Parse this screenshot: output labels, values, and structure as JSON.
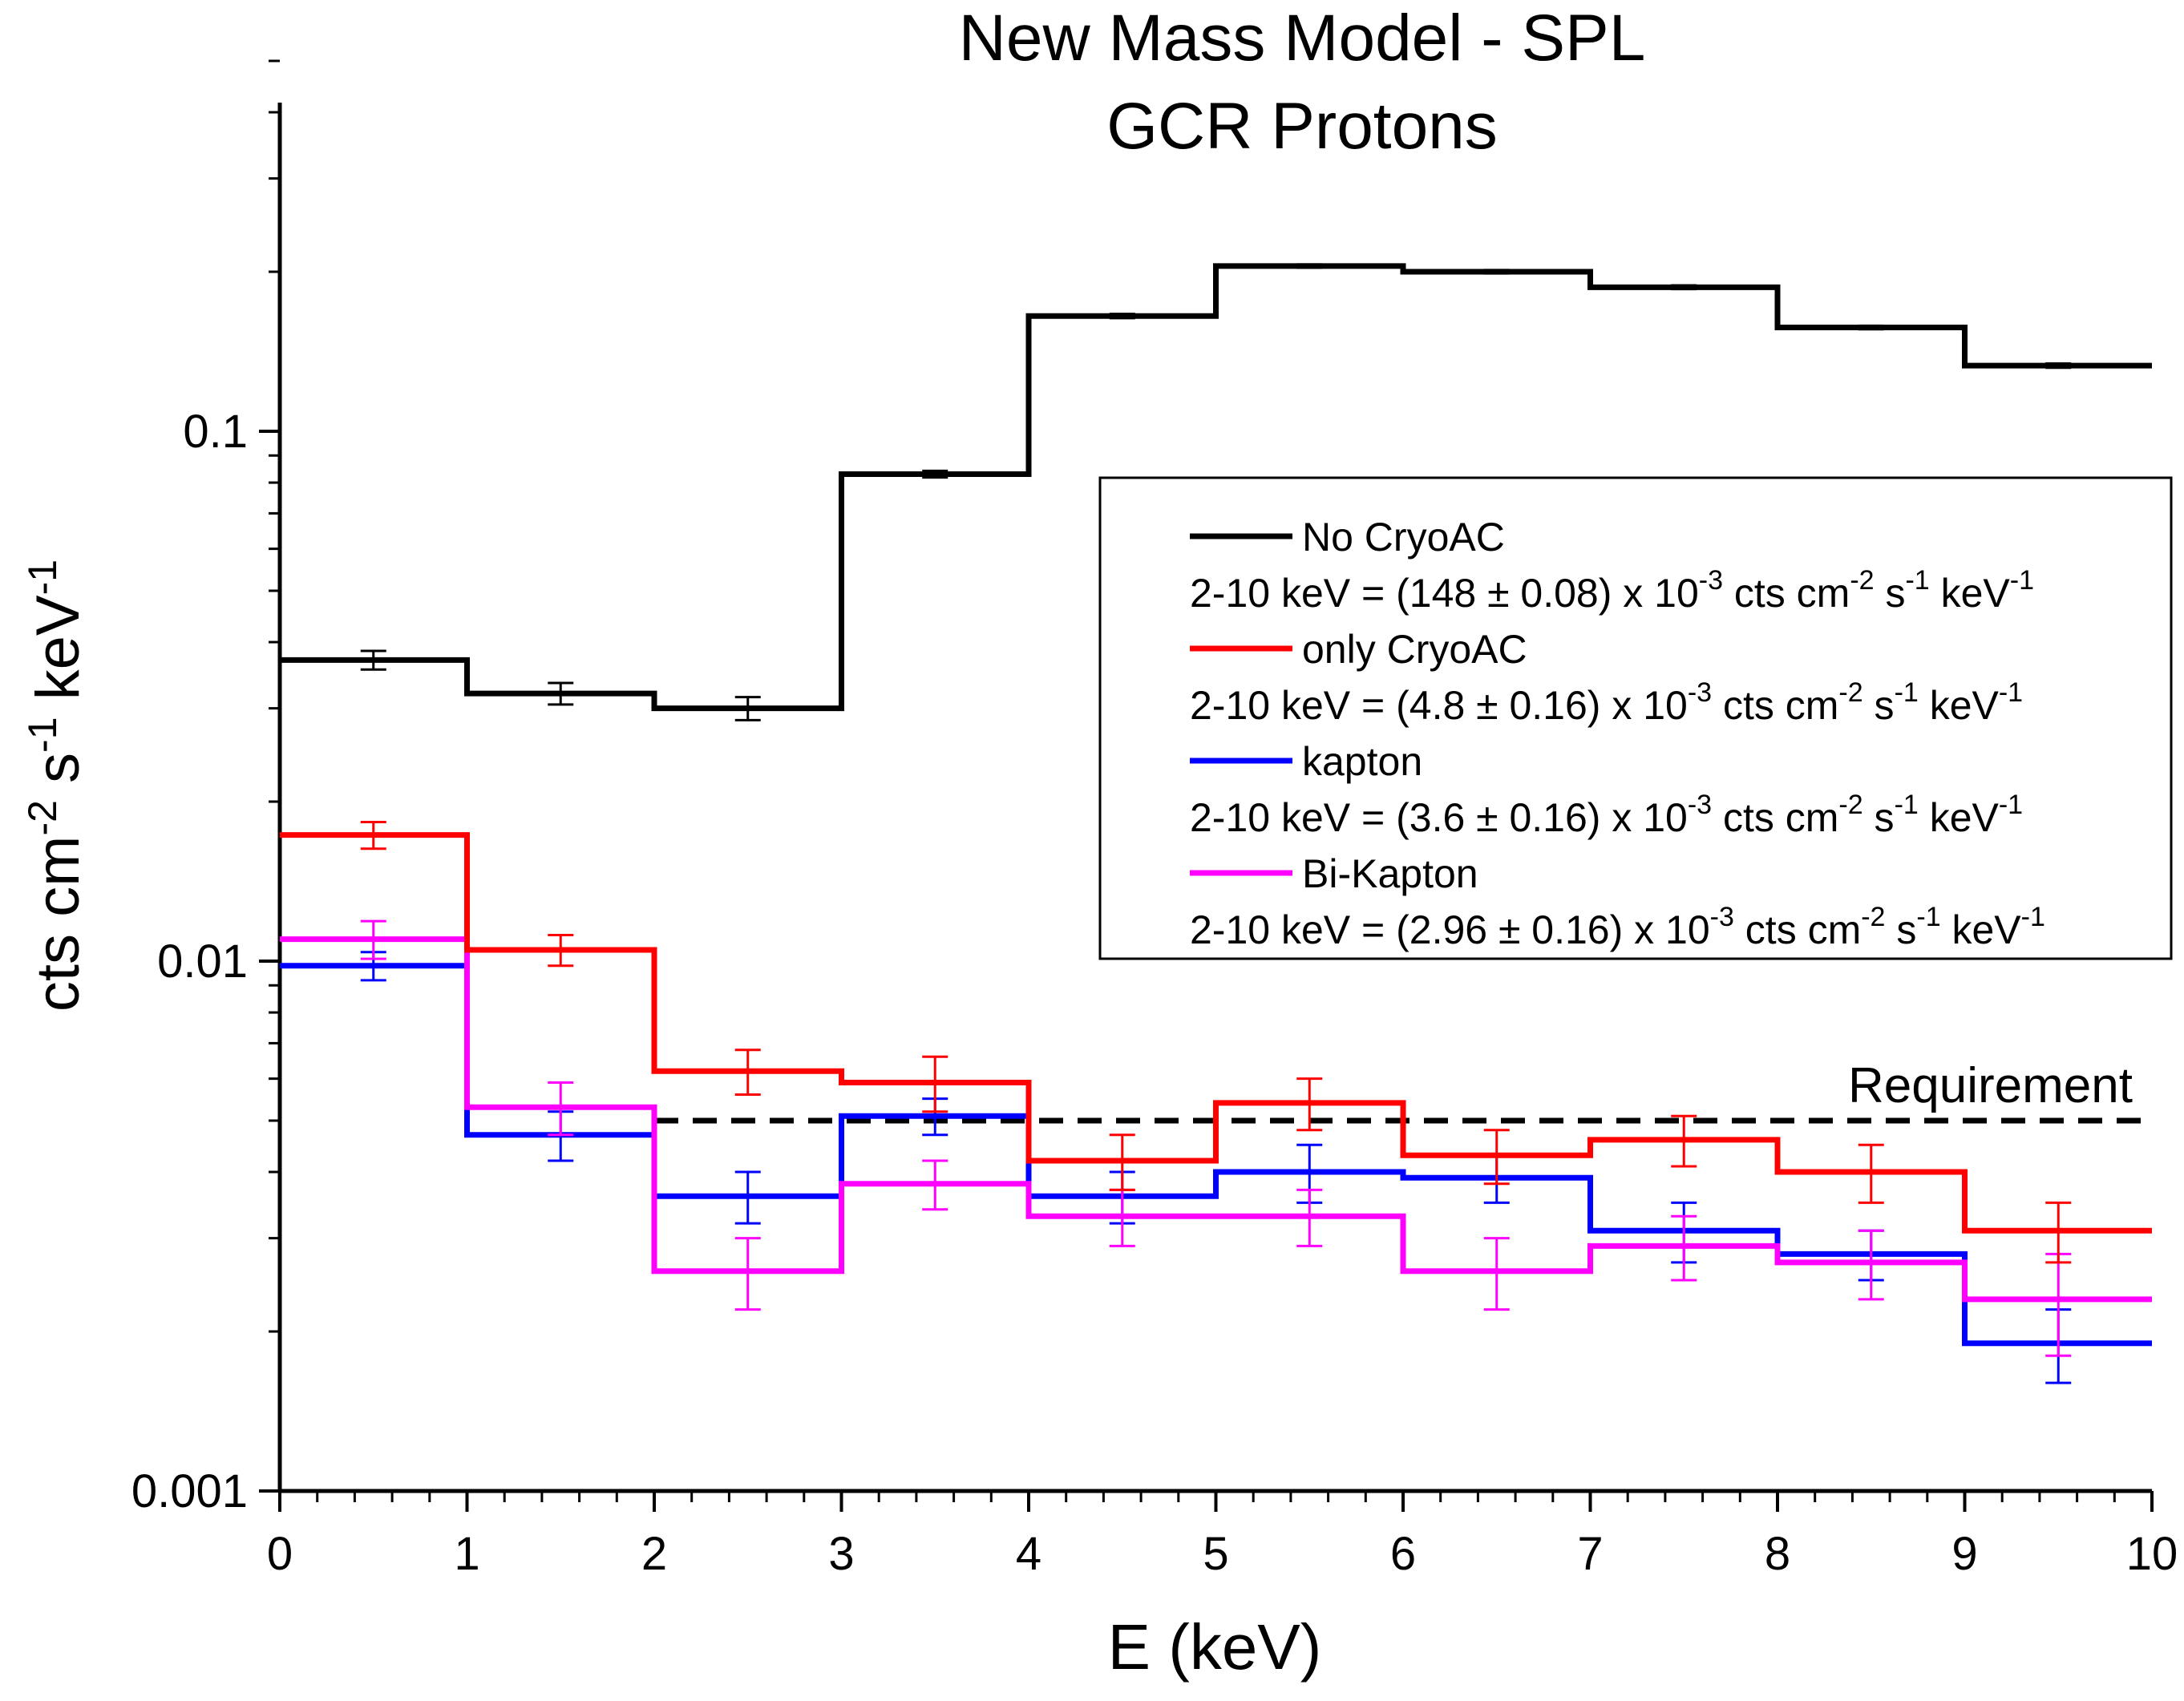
{
  "chart_data": {
    "type": "line",
    "step": true,
    "title_lines": [
      "New Mass Model - SPL",
      "GCR Protons"
    ],
    "xlabel": "E (keV)",
    "ylabel": {
      "base": "cts cm",
      "exp1": "-2",
      "mid": " s",
      "exp2": "-1",
      "tail": " keV",
      "exp3": "-1"
    },
    "xscale": "linear",
    "yscale": "log",
    "xlim": [
      0,
      10
    ],
    "ylim": [
      0.001,
      0.5
    ],
    "xticks": [
      0,
      1,
      2,
      3,
      4,
      5,
      6,
      7,
      8,
      9,
      10
    ],
    "xtick_labels": [
      "0",
      "1",
      "2",
      "3",
      "4",
      "5",
      "6",
      "7",
      "8",
      "9",
      "10"
    ],
    "yticks": [
      0.001,
      0.01,
      0.1
    ],
    "ytick_labels": [
      "0.001",
      "0.01",
      "0.1"
    ],
    "bin_edges": [
      0,
      1,
      2,
      3,
      4,
      5,
      6,
      7,
      8,
      9,
      10
    ],
    "bin_centers": [
      0.5,
      1.5,
      2.5,
      3.5,
      4.5,
      5.5,
      6.5,
      7.5,
      8.5,
      9.5
    ],
    "series": [
      {
        "name": "No CryoAC",
        "color": "#000000",
        "values": [
          0.037,
          0.032,
          0.03,
          0.083,
          0.165,
          0.205,
          0.2,
          0.187,
          0.157,
          0.133
        ],
        "errors": [
          0.0015,
          0.0015,
          0.0015,
          0.0012,
          0.0015,
          0.0015,
          0.0015,
          0.0015,
          0.0012,
          0.0012
        ],
        "note": "2-10 keV = (148 ± 0.08) x 10",
        "note_units": " cts cm",
        "note_exp": "-3"
      },
      {
        "name": "only CryoAC",
        "color": "#ff0000",
        "values": [
          0.0173,
          0.0105,
          0.0062,
          0.0059,
          0.0042,
          0.0054,
          0.0043,
          0.0046,
          0.004,
          0.0031
        ],
        "errors": [
          0.001,
          0.0007,
          0.0006,
          0.0007,
          0.0005,
          0.0006,
          0.0005,
          0.0005,
          0.0005,
          0.0004
        ],
        "note": "2-10 keV = (4.8 ± 0.16) x 10",
        "note_units": " cts cm",
        "note_exp": "-3"
      },
      {
        "name": "kapton",
        "color": "#0000ff",
        "values": [
          0.0098,
          0.0047,
          0.0036,
          0.0051,
          0.0036,
          0.004,
          0.0039,
          0.0031,
          0.0028,
          0.0019
        ],
        "errors": [
          0.0006,
          0.0005,
          0.0004,
          0.0004,
          0.0004,
          0.0005,
          0.0004,
          0.0004,
          0.0003,
          0.0003
        ],
        "note": "2-10 keV = (3.6 ± 0.16) x 10",
        "note_units": " cts cm",
        "note_exp": "-3"
      },
      {
        "name": "Bi-Kapton",
        "color": "#ff00ff",
        "values": [
          0.011,
          0.0053,
          0.0026,
          0.0038,
          0.0033,
          0.0033,
          0.0026,
          0.0029,
          0.0027,
          0.0023
        ],
        "errors": [
          0.0009,
          0.0006,
          0.0004,
          0.0004,
          0.0004,
          0.0004,
          0.0004,
          0.0004,
          0.0004,
          0.0005
        ],
        "note": "2-10 keV = (2.96 ± 0.16) x 10",
        "note_units": " cts cm",
        "note_exp": "-3"
      }
    ],
    "requirement": {
      "label": "Requirement",
      "value": 0.005,
      "x_start": 2,
      "x_end": 10,
      "style": "dashed",
      "color": "#000000"
    },
    "legend": {
      "position": "upper-right",
      "unit_tail": {
        "exp_cm": "-2",
        "s": " s",
        "exp_s": "-1",
        "kev": " keV",
        "exp_kev": "-1"
      }
    }
  }
}
